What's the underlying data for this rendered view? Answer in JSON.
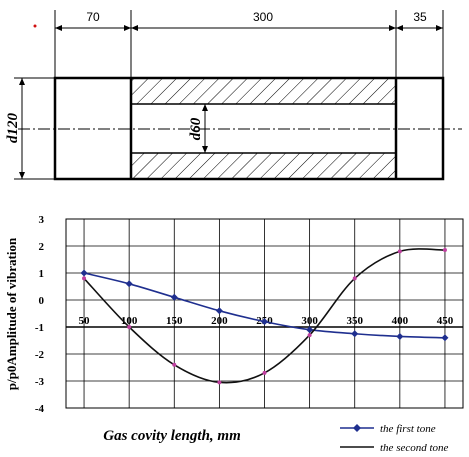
{
  "diagram": {
    "dimensions": [
      "70",
      "300",
      "35"
    ],
    "outer_diameter": "d120",
    "inner_diameter": "d60"
  },
  "chart_data": {
    "type": "line",
    "xlabel": "Gas covity length, mm",
    "ylabel": "p/p0Amplitude of vibration",
    "x": [
      50,
      100,
      150,
      200,
      250,
      300,
      350,
      400,
      450
    ],
    "x_ticks": [
      "50",
      "100",
      "150",
      "200",
      "250",
      "300",
      "350",
      "400",
      "450"
    ],
    "y_ticks": [
      "3",
      "2",
      "1",
      "0",
      "-1",
      "-2",
      "-3",
      "-4"
    ],
    "xlim": [
      30,
      470
    ],
    "ylim": [
      -4,
      3
    ],
    "grid": true,
    "legend_position": "bottom-right",
    "series": [
      {
        "name": "the first tone",
        "color": "#1f2f8f",
        "marker": "diamond",
        "values": [
          1.0,
          0.6,
          0.1,
          -0.4,
          -0.8,
          -1.1,
          -1.25,
          -1.35,
          -1.4
        ]
      },
      {
        "name": "the second tone",
        "color": "#111111",
        "marker": "dot",
        "values": [
          0.8,
          -1.0,
          -2.4,
          -3.05,
          -2.7,
          -1.3,
          0.8,
          1.8,
          1.85
        ]
      }
    ]
  }
}
